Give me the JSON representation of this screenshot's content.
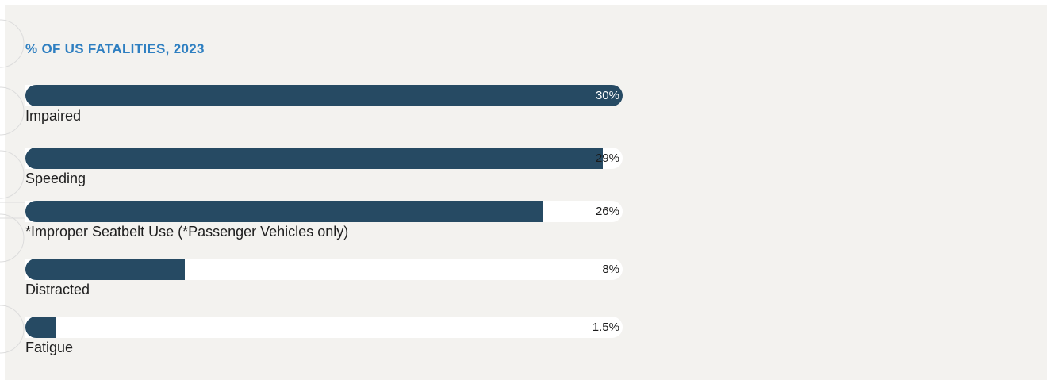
{
  "title": "% OF US FATALITIES, 2023",
  "colors": {
    "bar": "#264a63",
    "track": "#ffffff",
    "title": "#2e7fc1",
    "background": "#f3f2ef"
  },
  "chart_data": {
    "type": "bar",
    "orientation": "horizontal",
    "title": "% OF US FATALITIES, 2023",
    "categories": [
      "Impaired",
      "Speeding",
      "*Improper Seatbelt Use (*Passenger Vehicles only)",
      "Distracted",
      "Fatigue"
    ],
    "values": [
      30,
      29,
      26,
      8,
      1.5
    ],
    "value_labels": [
      "30%",
      "29%",
      "26%",
      "8%",
      "1.5%"
    ],
    "xlim": [
      0,
      30
    ],
    "grid": false
  }
}
